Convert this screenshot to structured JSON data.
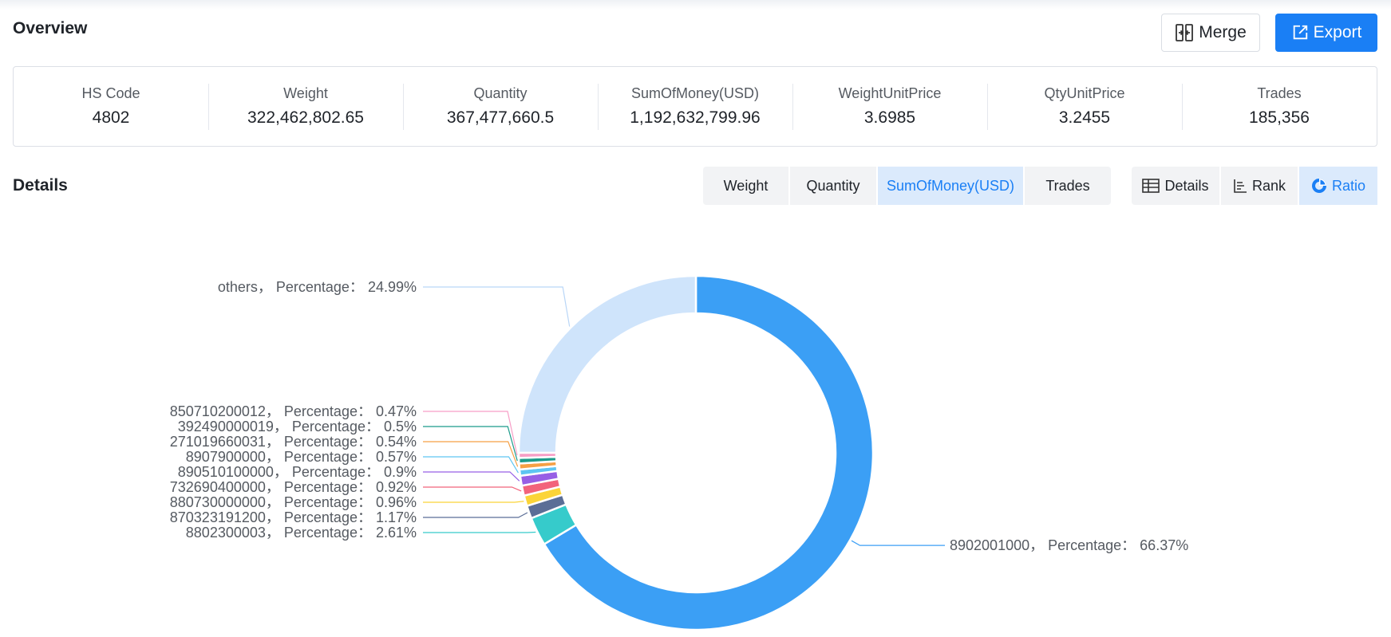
{
  "overview": {
    "title": "Overview"
  },
  "actions": {
    "merge_label": "Merge",
    "export_label": "Export"
  },
  "stats": [
    {
      "label": "HS Code",
      "value": "4802"
    },
    {
      "label": "Weight",
      "value": "322,462,802.65"
    },
    {
      "label": "Quantity",
      "value": "367,477,660.5"
    },
    {
      "label": "SumOfMoney(USD)",
      "value": "1,192,632,799.96"
    },
    {
      "label": "WeightUnitPrice",
      "value": "3.6985"
    },
    {
      "label": "QtyUnitPrice",
      "value": "3.2455"
    },
    {
      "label": "Trades",
      "value": "185,356"
    }
  ],
  "details": {
    "title": "Details"
  },
  "metric_tabs": [
    {
      "label": "Weight"
    },
    {
      "label": "Quantity"
    },
    {
      "label": "SumOfMoney(USD)"
    },
    {
      "label": "Trades"
    }
  ],
  "metric_active": "SumOfMoney(USD)",
  "view_tabs": [
    {
      "label": "Details",
      "icon": "table-icon"
    },
    {
      "label": "Rank",
      "icon": "rank-icon"
    },
    {
      "label": "Ratio",
      "icon": "pie-icon"
    }
  ],
  "view_active": "Ratio",
  "colors": {
    "accent": "#1a7ff5",
    "active_bg": "#dbeafc",
    "segment_bg": "#f2f3f5"
  },
  "chart_data": {
    "type": "pie",
    "donut": true,
    "label_prefix": "Percentage",
    "slices": [
      {
        "name": "8902001000",
        "value": 66.37,
        "color": "#3b9ff5"
      },
      {
        "name": "8802300003",
        "value": 2.61,
        "color": "#36cbcb"
      },
      {
        "name": "870323191200",
        "value": 1.17,
        "color": "#5b6e96"
      },
      {
        "name": "880730000000",
        "value": 0.96,
        "color": "#fbd438"
      },
      {
        "name": "732690400000",
        "value": 0.92,
        "color": "#f2637b"
      },
      {
        "name": "890510100000",
        "value": 0.9,
        "color": "#975fe5"
      },
      {
        "name": "8907900000",
        "value": 0.57,
        "color": "#5ec5f2"
      },
      {
        "name": "271019660031",
        "value": 0.54,
        "color": "#f5a045"
      },
      {
        "name": "392490000019",
        "value": 0.5,
        "color": "#1b9b8a"
      },
      {
        "name": "850710200012",
        "value": 0.47,
        "color": "#f79ec6"
      },
      {
        "name": "others",
        "value": 24.99,
        "color": "#cfe4fb"
      }
    ]
  }
}
